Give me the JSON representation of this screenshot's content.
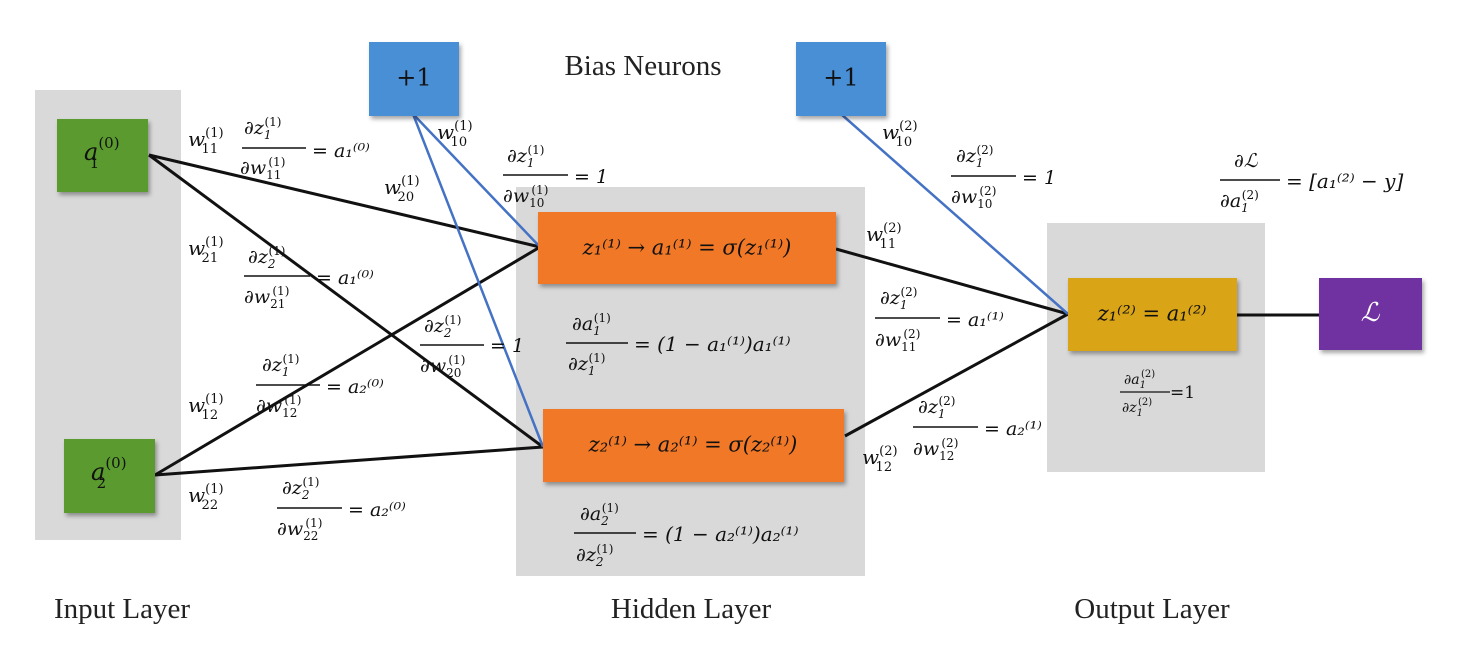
{
  "labels": {
    "bias_neurons": "Bias Neurons",
    "input_layer": "Input Layer",
    "hidden_layer": "Hidden Layer",
    "output_layer": "Output Layer",
    "bias_value": "+1"
  },
  "colors": {
    "panel": "#d9d9d9",
    "input_node": "#5a9a2f",
    "bias_node": "#4a8fd6",
    "hidden_node": "#f07826",
    "output_node": "#d9a518",
    "loss_node": "#7030a0",
    "edge_black": "#111111",
    "edge_blue": "#4472c4"
  },
  "nodes": {
    "a1_0": {
      "base": "a",
      "sub": "1",
      "sup": "(0)"
    },
    "a2_0": {
      "base": "a",
      "sub": "2",
      "sup": "(0)"
    },
    "h1": "z₁⁽¹⁾ → a₁⁽¹⁾ = σ(z₁⁽¹⁾)",
    "h2": "z₂⁽¹⁾ → a₂⁽¹⁾ = σ(z₂⁽¹⁾)",
    "out": "z₁⁽²⁾ = a₁⁽²⁾",
    "loss": "ℒ"
  },
  "weights": {
    "w11_1": "(1)",
    "w21_1": "(1)",
    "w12_1": "(1)",
    "w22_1": "(1)",
    "w10_1": "(1)",
    "w20_1": "(1)",
    "w11_2": "(2)",
    "w12_2": "(2)",
    "w10_2": "(2)"
  },
  "derivs": {
    "rhs_a1_0": "= a₁⁽⁰⁾",
    "rhs_a2_0": "= a₂⁽⁰⁾",
    "rhs_one": "= 1",
    "rhs_h1": "= (1 − a₁⁽¹⁾)a₁⁽¹⁾",
    "rhs_h2": "= (1 − a₂⁽¹⁾)a₂⁽¹⁾",
    "rhs_a1_1": "= a₁⁽¹⁾",
    "rhs_a2_1": "= a₂⁽¹⁾",
    "rhs_loss": "= [a₁⁽²⁾ − y]",
    "rhs_out": "=1"
  }
}
